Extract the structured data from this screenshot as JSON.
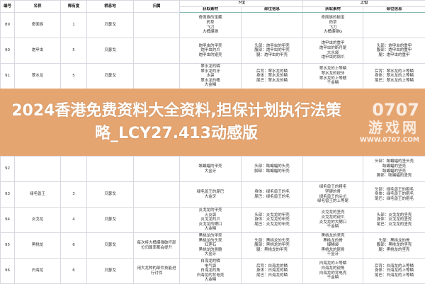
{
  "headers": {
    "id": "编号",
    "name": "名称",
    "rarity": "稀有度",
    "habitat": "栖息地",
    "attribution": "归属",
    "low_rank": "下位",
    "high_rank": "上位",
    "materials": "获取素材",
    "parts": "部位信息"
  },
  "rows": [
    {
      "id": "89",
      "name": "奇面族",
      "rarity": "1",
      "habitat": "贝瑟戈",
      "attribution": "",
      "low_mat": [
        "奇面族的宝藏",
        "药草",
        "飞刀",
        "大桶爆弹"
      ],
      "low_parts": [],
      "high_mat": [
        "奇面族的秘宝",
        "药草",
        "飞刀",
        "大桶爆弹G"
      ],
      "high_parts": []
    },
    {
      "id": "90",
      "name": "炮甲虫",
      "rarity": "5",
      "habitat": "贝瑟戈",
      "attribution": "",
      "low_mat": [
        "炮甲虫的甲壳",
        "炮甲虫的爪",
        "炮甲虫的翅壳"
      ],
      "low_parts": [
        "头部：炮甲虫的甲壳",
        "腹部：炮甲虫的甲壳",
        "腿：炮甲虫的甲壳"
      ],
      "high_mat": [
        "炮甲虫的重甲",
        "炮甲虫的断月尾",
        "大水袋",
        "炮甲虫的钢爪"
      ],
      "high_parts": [
        "头部：炮甲虫的重甲",
        "腹部：炮甲虫的重甲",
        "腿：炮甲虫的重甲"
      ]
    },
    {
      "id": "91",
      "name": "翠水龙",
      "rarity": "5",
      "habitat": "贝瑟戈",
      "attribution": "",
      "low_mat": [
        "翠水龙的鳞",
        "翠水龙的牙",
        "水袋",
        "翠水龙的鳍",
        "大金鳞"
      ],
      "low_parts": [
        "后背：翠水龙的鳞",
        "身体：翠水龙的鳞",
        "尾巴：翠水龙的鳞"
      ],
      "high_mat": [
        "翠水龙的上等鳞",
        "翠水龙的锐牙",
        "翠水龙的上等鳍",
        "千金鳞"
      ],
      "high_parts": [
        "后背：翠水龙的上等鳞",
        "身体：翠水龙的上等鳞",
        "尾巴：翠水龙的上等鳞"
      ]
    },
    {
      "id": "92",
      "name": "",
      "rarity": "",
      "habitat": "",
      "attribution": "",
      "low_mat": [
        "眩蝙蝠的甲壳",
        "",
        "",
        "",
        "大金牙"
      ],
      "low_parts": [
        "头部：眩蝙蝠的头壳",
        "",
        "",
        "脚部：眩蝙蝠的甲壳"
      ],
      "high_mat": [],
      "high_parts": [
        "头部：眩蝙蝠的坚头壳",
        "眩蝙蝠的坚壳",
        "眩蝙蝠的坚壳",
        "脚部：眩蝙蝠的坚壳"
      ]
    },
    {
      "id": "93",
      "name": "绿毛兽王",
      "rarity": "3",
      "habitat": "贝瑟戈",
      "attribution": "",
      "low_mat": [
        "",
        "",
        "绿毛兽王的尾巴",
        "大金牙"
      ],
      "low_parts": [
        "",
        "身体：绿毛兽王的毛",
        "尾巴：绿毛兽王的毛"
      ],
      "high_mat": [
        "绿毛兽王的粗毛",
        "坚硬的骨",
        "绿毛兽王的尖爪",
        "绿毛兽王的上等尾"
      ],
      "high_parts": [
        "头部：绿毛兽王的粗毛",
        "身体：绿毛兽王的粗毛",
        "尾巴：绿毛兽王的粗毛"
      ]
    },
    {
      "id": "94",
      "name": "炎戈龙",
      "rarity": "4",
      "habitat": "贝瑟戈",
      "attribution": "",
      "low_mat": [
        "炎戈龙的甲壳",
        "火炎袋",
        "炎戈龙的爪",
        "炎戈龙的鳃口",
        "大金鳞"
      ],
      "low_parts": [
        "头部：炎戈龙的甲壳",
        "身体：炎戈龙的甲壳",
        "尾巴：炎戈龙的甲壳"
      ],
      "high_mat": [
        "炎戈龙的坚壳",
        "炎戈龙的锐爪",
        "炎戈龙的大鳃口",
        "千金鳞"
      ],
      "high_parts": [
        "头部：炎戈龙的坚壳",
        "身体：炎戈龙的坚壳",
        "尾巴：炎戈龙的坚壳"
      ]
    },
    {
      "id": "95",
      "name": "黑桃龙",
      "rarity": "6",
      "habitat": "贝瑟戈",
      "attribution": "每次将大桶爆弹破坏部\n位归属率都会提升",
      "low_mat": [
        "黑桃龙的甲壳",
        "黑桃龙的头壳",
        "红莲石",
        "黑桃龙的骨髓",
        "大金牙"
      ],
      "low_parts": [
        "头部：黑桃龙的头壳",
        "腹部：黑桃龙的甲壳",
        "腿：黑桃龙的甲壳"
      ],
      "high_mat": [
        "黑桃龙的坚壳",
        "黑桃龙的骨",
        "爆鳞袋",
        "黑桃龙的尾骨",
        "千金牙"
      ],
      "high_parts": [
        "头部：黑桃龙的骨",
        "腹部：黑桃龙的坚壳",
        "腿：黑桃龙的坚壳"
      ]
    },
    {
      "id": "96",
      "name": "白海龙",
      "rarity": "6",
      "habitat": "贝瑟戈",
      "attribution": "用大龙种的部件技能进\n行讨伐",
      "low_mat": [
        "白海龙的鳞",
        "电气袋",
        "白海龙的角",
        "白海龙的背电壳",
        "大金鳞"
      ],
      "low_parts": [
        "后背：白海龙的鳞",
        "身体：白海龙的鳞",
        "尾巴：白海龙的鳞"
      ],
      "high_mat": [
        "白海龙的上等鳞",
        "白海龙的锐角",
        "白海龙的背电壳",
        "千金鳞"
      ],
      "high_parts": [
        "后背：白海龙的上等鳞",
        "身体：白海龙的上等鳞",
        "尾巴：白海龙的上等鳞"
      ]
    }
  ],
  "banner": {
    "title": "2024香港免费资料大全资料,担保计划执行法策略_LCY27.413动感版"
  },
  "watermark": {
    "logo": "0707",
    "name": "游戏网",
    "url": "WWW.0707.COM"
  },
  "colors": {
    "banner": "#e4a069",
    "grid": "#d8d8e0",
    "header_rule": "#7fb8b0"
  }
}
